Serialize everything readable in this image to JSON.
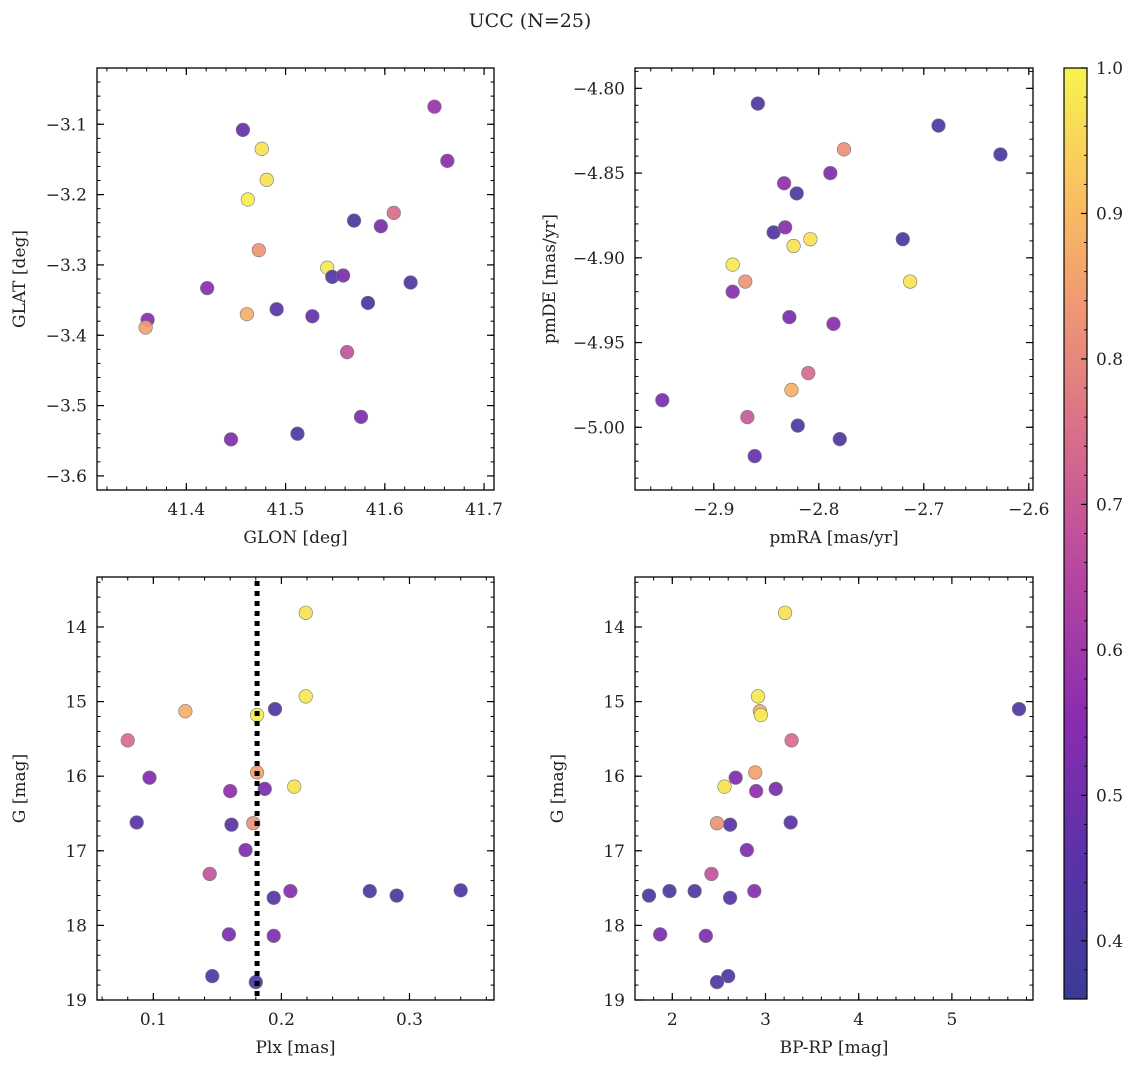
{
  "title": "UCC (N=25)",
  "colorbar": {
    "min": 0.36,
    "max": 1.0,
    "ticks": [
      0.4,
      0.5,
      0.6,
      0.7,
      0.8,
      0.9,
      1.0
    ],
    "tick_labels": [
      "0.4",
      "0.5",
      "0.6",
      "0.7",
      "0.8",
      "0.9",
      "1.0"
    ],
    "colormap": "plasma"
  },
  "chart_data": [
    {
      "type": "scatter",
      "xlabel": "GLON [deg]",
      "ylabel": "GLAT [deg]",
      "xlim": [
        41.31,
        41.71
      ],
      "ylim": [
        -3.62,
        -3.02
      ],
      "y_inverted": false,
      "xticks": [
        41.4,
        41.5,
        41.6,
        41.7
      ],
      "xtick_labels": [
        "41.4",
        "41.5",
        "41.6",
        "41.7"
      ],
      "yticks": [
        -3.6,
        -3.5,
        -3.4,
        -3.3,
        -3.2,
        -3.1
      ],
      "ytick_labels": [
        "−3.6",
        "−3.5",
        "−3.4",
        "−3.3",
        "−3.2",
        "−3.1"
      ],
      "x_minor_step": 0.02,
      "y_minor_step": 0.02,
      "points": [
        {
          "x": 41.457,
          "y": -3.108,
          "c": 0.48
        },
        {
          "x": 41.476,
          "y": -3.135,
          "c": 0.97
        },
        {
          "x": 41.481,
          "y": -3.179,
          "c": 0.97
        },
        {
          "x": 41.462,
          "y": -3.207,
          "c": 0.99
        },
        {
          "x": 41.473,
          "y": -3.279,
          "c": 0.83
        },
        {
          "x": 41.421,
          "y": -3.333,
          "c": 0.55
        },
        {
          "x": 41.361,
          "y": -3.378,
          "c": 0.55
        },
        {
          "x": 41.359,
          "y": -3.389,
          "c": 0.85
        },
        {
          "x": 41.461,
          "y": -3.37,
          "c": 0.88
        },
        {
          "x": 41.491,
          "y": -3.363,
          "c": 0.44
        },
        {
          "x": 41.527,
          "y": -3.373,
          "c": 0.47
        },
        {
          "x": 41.542,
          "y": -3.304,
          "c": 0.98
        },
        {
          "x": 41.547,
          "y": -3.317,
          "c": 0.42
        },
        {
          "x": 41.558,
          "y": -3.315,
          "c": 0.52
        },
        {
          "x": 41.569,
          "y": -3.237,
          "c": 0.4
        },
        {
          "x": 41.596,
          "y": -3.245,
          "c": 0.52
        },
        {
          "x": 41.609,
          "y": -3.226,
          "c": 0.74
        },
        {
          "x": 41.583,
          "y": -3.354,
          "c": 0.4
        },
        {
          "x": 41.626,
          "y": -3.325,
          "c": 0.42
        },
        {
          "x": 41.562,
          "y": -3.424,
          "c": 0.68
        },
        {
          "x": 41.576,
          "y": -3.516,
          "c": 0.53
        },
        {
          "x": 41.512,
          "y": -3.54,
          "c": 0.42
        },
        {
          "x": 41.445,
          "y": -3.548,
          "c": 0.53
        },
        {
          "x": 41.65,
          "y": -3.075,
          "c": 0.58
        },
        {
          "x": 41.663,
          "y": -3.152,
          "c": 0.55
        }
      ]
    },
    {
      "type": "scatter",
      "xlabel": "pmRA [mas/yr]",
      "ylabel": "pmDE [mas/yr]",
      "xlim": [
        -2.975,
        -2.596
      ],
      "ylim": [
        -5.037,
        -4.788
      ],
      "y_inverted": false,
      "xticks": [
        -2.9,
        -2.8,
        -2.7,
        -2.6
      ],
      "xtick_labels": [
        "−2.9",
        "−2.8",
        "−2.7",
        "−2.6"
      ],
      "yticks": [
        -5.0,
        -4.95,
        -4.9,
        -4.85,
        -4.8
      ],
      "ytick_labels": [
        "−5.00",
        "−4.95",
        "−4.90",
        "−4.85",
        "−4.80"
      ],
      "x_minor_step": 0.02,
      "y_minor_step": 0.01,
      "points": [
        {
          "x": -2.858,
          "y": -4.809,
          "c": 0.42
        },
        {
          "x": -2.686,
          "y": -4.822,
          "c": 0.42
        },
        {
          "x": -2.627,
          "y": -4.839,
          "c": 0.4
        },
        {
          "x": -2.776,
          "y": -4.836,
          "c": 0.82
        },
        {
          "x": -2.789,
          "y": -4.85,
          "c": 0.53
        },
        {
          "x": -2.833,
          "y": -4.856,
          "c": 0.56
        },
        {
          "x": -2.821,
          "y": -4.862,
          "c": 0.42
        },
        {
          "x": -2.843,
          "y": -4.885,
          "c": 0.43
        },
        {
          "x": -2.832,
          "y": -4.882,
          "c": 0.55
        },
        {
          "x": -2.824,
          "y": -4.893,
          "c": 0.97
        },
        {
          "x": -2.808,
          "y": -4.889,
          "c": 0.97
        },
        {
          "x": -2.72,
          "y": -4.889,
          "c": 0.4
        },
        {
          "x": -2.882,
          "y": -4.904,
          "c": 0.98
        },
        {
          "x": -2.87,
          "y": -4.914,
          "c": 0.83
        },
        {
          "x": -2.882,
          "y": -4.92,
          "c": 0.55
        },
        {
          "x": -2.713,
          "y": -4.914,
          "c": 0.97
        },
        {
          "x": -2.828,
          "y": -4.935,
          "c": 0.52
        },
        {
          "x": -2.786,
          "y": -4.939,
          "c": 0.55
        },
        {
          "x": -2.81,
          "y": -4.968,
          "c": 0.74
        },
        {
          "x": -2.826,
          "y": -4.978,
          "c": 0.88
        },
        {
          "x": -2.949,
          "y": -4.984,
          "c": 0.52
        },
        {
          "x": -2.868,
          "y": -4.994,
          "c": 0.7
        },
        {
          "x": -2.82,
          "y": -4.999,
          "c": 0.42
        },
        {
          "x": -2.78,
          "y": -5.007,
          "c": 0.42
        },
        {
          "x": -2.861,
          "y": -5.017,
          "c": 0.48
        }
      ]
    },
    {
      "type": "scatter",
      "xlabel": "Plx [mas]",
      "ylabel": "G [mag]",
      "xlim": [
        0.056,
        0.366
      ],
      "ylim": [
        19.0,
        13.33
      ],
      "y_inverted": true,
      "xticks": [
        0.1,
        0.2,
        0.3
      ],
      "xtick_labels": [
        "0.1",
        "0.2",
        "0.3"
      ],
      "yticks": [
        14,
        15,
        16,
        17,
        18,
        19
      ],
      "ytick_labels": [
        "14",
        "15",
        "16",
        "17",
        "18",
        "19"
      ],
      "x_minor_step": 0.02,
      "y_minor_step": 0.2,
      "vline": {
        "x": 0.181,
        "style": "dotted"
      },
      "points": [
        {
          "x": 0.219,
          "y": 13.81,
          "c": 0.97
        },
        {
          "x": 0.219,
          "y": 14.93,
          "c": 0.98
        },
        {
          "x": 0.125,
          "y": 15.13,
          "c": 0.88
        },
        {
          "x": 0.181,
          "y": 15.18,
          "c": 0.99
        },
        {
          "x": 0.195,
          "y": 15.1,
          "c": 0.42
        },
        {
          "x": 0.08,
          "y": 15.52,
          "c": 0.74
        },
        {
          "x": 0.097,
          "y": 16.02,
          "c": 0.53
        },
        {
          "x": 0.181,
          "y": 15.95,
          "c": 0.85
        },
        {
          "x": 0.21,
          "y": 16.14,
          "c": 0.97
        },
        {
          "x": 0.16,
          "y": 16.2,
          "c": 0.56
        },
        {
          "x": 0.187,
          "y": 16.17,
          "c": 0.52
        },
        {
          "x": 0.087,
          "y": 16.62,
          "c": 0.44
        },
        {
          "x": 0.161,
          "y": 16.65,
          "c": 0.44
        },
        {
          "x": 0.178,
          "y": 16.63,
          "c": 0.82
        },
        {
          "x": 0.172,
          "y": 16.99,
          "c": 0.53
        },
        {
          "x": 0.144,
          "y": 17.31,
          "c": 0.68
        },
        {
          "x": 0.207,
          "y": 17.54,
          "c": 0.55
        },
        {
          "x": 0.269,
          "y": 17.54,
          "c": 0.42
        },
        {
          "x": 0.34,
          "y": 17.53,
          "c": 0.42
        },
        {
          "x": 0.29,
          "y": 17.6,
          "c": 0.4
        },
        {
          "x": 0.194,
          "y": 17.63,
          "c": 0.44
        },
        {
          "x": 0.159,
          "y": 18.12,
          "c": 0.52
        },
        {
          "x": 0.194,
          "y": 18.14,
          "c": 0.53
        },
        {
          "x": 0.146,
          "y": 18.68,
          "c": 0.42
        },
        {
          "x": 0.18,
          "y": 18.76,
          "c": 0.42
        }
      ]
    },
    {
      "type": "scatter",
      "xlabel": "BP-RP [mag]",
      "ylabel": "G [mag]",
      "xlim": [
        1.6,
        5.87
      ],
      "ylim": [
        19.0,
        13.33
      ],
      "y_inverted": true,
      "xticks": [
        2,
        3,
        4,
        5
      ],
      "xtick_labels": [
        "2",
        "3",
        "4",
        "5"
      ],
      "yticks": [
        14,
        15,
        16,
        17,
        18,
        19
      ],
      "ytick_labels": [
        "14",
        "15",
        "16",
        "17",
        "18",
        "19"
      ],
      "x_minor_step": 0.2,
      "y_minor_step": 0.2,
      "points": [
        {
          "x": 3.21,
          "y": 13.81,
          "c": 0.97
        },
        {
          "x": 2.92,
          "y": 14.93,
          "c": 0.98
        },
        {
          "x": 2.94,
          "y": 15.13,
          "c": 0.88
        },
        {
          "x": 2.95,
          "y": 15.18,
          "c": 0.99
        },
        {
          "x": 5.72,
          "y": 15.1,
          "c": 0.42
        },
        {
          "x": 3.28,
          "y": 15.52,
          "c": 0.74
        },
        {
          "x": 2.68,
          "y": 16.02,
          "c": 0.53
        },
        {
          "x": 2.89,
          "y": 15.95,
          "c": 0.85
        },
        {
          "x": 2.56,
          "y": 16.14,
          "c": 0.97
        },
        {
          "x": 2.9,
          "y": 16.2,
          "c": 0.56
        },
        {
          "x": 3.11,
          "y": 16.17,
          "c": 0.52
        },
        {
          "x": 3.27,
          "y": 16.62,
          "c": 0.44
        },
        {
          "x": 2.62,
          "y": 16.65,
          "c": 0.44
        },
        {
          "x": 2.48,
          "y": 16.63,
          "c": 0.82
        },
        {
          "x": 2.8,
          "y": 16.99,
          "c": 0.53
        },
        {
          "x": 2.42,
          "y": 17.31,
          "c": 0.68
        },
        {
          "x": 1.75,
          "y": 17.6,
          "c": 0.4
        },
        {
          "x": 1.97,
          "y": 17.54,
          "c": 0.42
        },
        {
          "x": 2.24,
          "y": 17.54,
          "c": 0.42
        },
        {
          "x": 2.88,
          "y": 17.54,
          "c": 0.55
        },
        {
          "x": 2.62,
          "y": 17.63,
          "c": 0.44
        },
        {
          "x": 1.87,
          "y": 18.12,
          "c": 0.52
        },
        {
          "x": 2.36,
          "y": 18.14,
          "c": 0.53
        },
        {
          "x": 2.6,
          "y": 18.68,
          "c": 0.42
        },
        {
          "x": 2.48,
          "y": 18.76,
          "c": 0.42
        }
      ]
    }
  ]
}
